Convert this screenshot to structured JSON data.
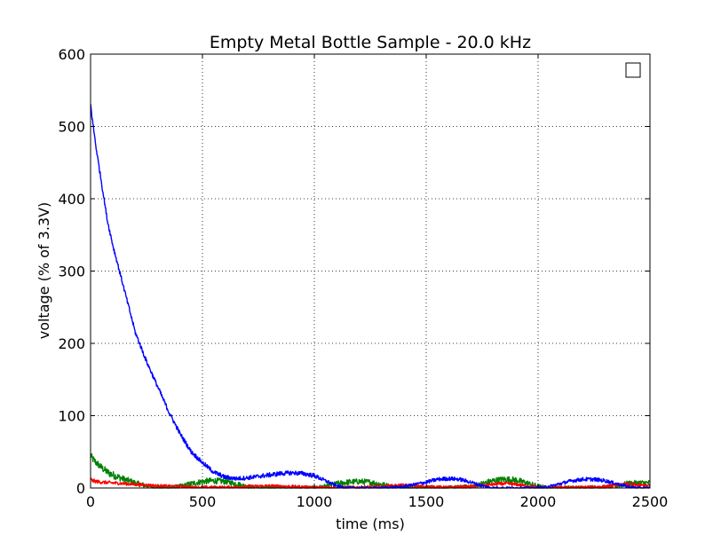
{
  "chart_data": {
    "type": "line",
    "title": "Empty Metal Bottle Sample - 20.0 kHz",
    "xlabel": "time (ms)",
    "ylabel": "voltage (% of 3.3V)",
    "xlim": [
      0,
      2500
    ],
    "ylim": [
      0,
      600
    ],
    "xticks": [
      "0",
      "500",
      "1000",
      "1500",
      "2000",
      "2500"
    ],
    "yticks": [
      "0",
      "100",
      "200",
      "300",
      "400",
      "500",
      "600"
    ],
    "grid": true,
    "legend": {
      "placement": "top-right",
      "entries": []
    },
    "series": [
      {
        "color": "#0000ff",
        "noise": 3,
        "x": [
          0,
          10,
          25,
          50,
          75,
          100,
          150,
          200,
          250,
          300,
          350,
          400,
          450,
          500,
          550,
          600,
          650,
          700,
          750,
          800,
          850,
          900,
          950,
          1000,
          1050,
          1100,
          1150,
          1200,
          1300,
          1400,
          1500,
          1550,
          1600,
          1650,
          1700,
          1750,
          1800,
          1900,
          2000,
          2050,
          2100,
          2150,
          2200,
          2250,
          2300,
          2350,
          2400,
          2450,
          2500
        ],
        "values": [
          530,
          505,
          470,
          420,
          370,
          335,
          275,
          215,
          175,
          140,
          105,
          75,
          50,
          35,
          22,
          15,
          13,
          14,
          16,
          18,
          20,
          21,
          20,
          17,
          10,
          3,
          0,
          0,
          0,
          2,
          8,
          12,
          13,
          12,
          8,
          3,
          0,
          0,
          0,
          2,
          6,
          10,
          12,
          12,
          10,
          6,
          2,
          0,
          0
        ]
      },
      {
        "color": "#008000",
        "noise": 5,
        "x": [
          0,
          10,
          25,
          50,
          75,
          100,
          150,
          200,
          250,
          300,
          350,
          400,
          450,
          500,
          550,
          600,
          650,
          700,
          750,
          800,
          900,
          1000,
          1050,
          1100,
          1150,
          1200,
          1250,
          1300,
          1350,
          1400,
          1500,
          1600,
          1700,
          1750,
          1800,
          1850,
          1900,
          1950,
          2000,
          2050,
          2100,
          2200,
          2300,
          2350,
          2400,
          2450,
          2500
        ],
        "values": [
          45,
          40,
          35,
          28,
          22,
          18,
          12,
          7,
          3,
          1,
          0,
          2,
          6,
          9,
          10,
          9,
          6,
          2,
          0,
          0,
          0,
          0,
          2,
          6,
          8,
          9,
          8,
          5,
          2,
          0,
          0,
          0,
          2,
          6,
          10,
          12,
          11,
          7,
          2,
          0,
          0,
          0,
          1,
          3,
          6,
          7,
          7
        ]
      },
      {
        "color": "#ff0000",
        "noise": 3,
        "x": [
          0,
          10,
          25,
          50,
          100,
          150,
          200,
          250,
          300,
          400,
          500,
          600,
          700,
          800,
          900,
          1000,
          1100,
          1200,
          1300,
          1400,
          1500,
          1600,
          1700,
          1800,
          1850,
          1900,
          1950,
          2000,
          2100,
          2200,
          2300,
          2350,
          2400,
          2450,
          2500
        ],
        "values": [
          12,
          10,
          9,
          8,
          7,
          6,
          5,
          4,
          3,
          2,
          1,
          1,
          2,
          3,
          2,
          1,
          1,
          1,
          2,
          4,
          2,
          1,
          2,
          5,
          6,
          5,
          3,
          1,
          1,
          1,
          2,
          4,
          5,
          4,
          3
        ]
      }
    ]
  }
}
